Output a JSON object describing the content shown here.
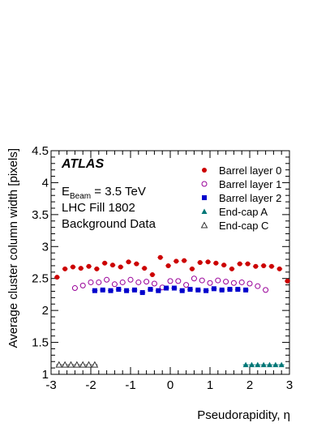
{
  "chart_data": {
    "type": "scatter",
    "xlabel": "Pseudorapidity, η",
    "ylabel": "Average cluster column width [pixels]",
    "xlim": [
      -3,
      3
    ],
    "ylim": [
      1,
      4.5
    ],
    "x_ticks": [
      -3,
      -2,
      -1,
      0,
      1,
      2,
      3
    ],
    "x_tick_labels": [
      "-3",
      "-2",
      "-1",
      "0",
      "1",
      "2",
      "3"
    ],
    "y_ticks": [
      1,
      1.5,
      2,
      2.5,
      3,
      3.5,
      4,
      4.5
    ],
    "y_tick_labels": [
      "1",
      "1.5",
      "2",
      "2.5",
      "3",
      "3.5",
      "4",
      "4.5"
    ],
    "grid": false,
    "legend_position": "top-right",
    "annotations": {
      "experiment": "ATLAS",
      "beam_prefix": "E",
      "beam_sub": "Beam",
      "beam_value": " = 3.5 TeV",
      "fill": "LHC Fill 1802",
      "data_type": "Background Data"
    },
    "series": [
      {
        "name": "Barrel layer 0",
        "marker": "filled-circle",
        "color": "#cc0000",
        "x": [
          -2.85,
          -2.65,
          -2.45,
          -2.25,
          -2.05,
          -1.85,
          -1.65,
          -1.45,
          -1.25,
          -1.05,
          -0.85,
          -0.65,
          -0.45,
          -0.25,
          -0.05,
          0.15,
          0.35,
          0.55,
          0.75,
          0.95,
          1.15,
          1.35,
          1.55,
          1.75,
          1.95,
          2.15,
          2.35,
          2.55,
          2.75,
          2.95
        ],
        "y": [
          2.52,
          2.65,
          2.68,
          2.66,
          2.69,
          2.65,
          2.74,
          2.71,
          2.68,
          2.76,
          2.73,
          2.66,
          2.56,
          2.83,
          2.7,
          2.77,
          2.78,
          2.65,
          2.75,
          2.76,
          2.74,
          2.71,
          2.65,
          2.73,
          2.73,
          2.69,
          2.7,
          2.69,
          2.65,
          2.46
        ]
      },
      {
        "name": "Barrel layer 1",
        "marker": "open-circle",
        "color": "#990099",
        "x": [
          -2.4,
          -2.2,
          -2.0,
          -1.8,
          -1.6,
          -1.4,
          -1.2,
          -1.0,
          -0.8,
          -0.6,
          -0.4,
          -0.2,
          0.0,
          0.2,
          0.4,
          0.6,
          0.8,
          1.0,
          1.2,
          1.4,
          1.6,
          1.8,
          2.0,
          2.2,
          2.4
        ],
        "y": [
          2.35,
          2.39,
          2.44,
          2.44,
          2.48,
          2.41,
          2.44,
          2.48,
          2.44,
          2.45,
          2.42,
          2.36,
          2.46,
          2.46,
          2.4,
          2.5,
          2.47,
          2.43,
          2.47,
          2.45,
          2.43,
          2.44,
          2.42,
          2.38,
          2.32
        ]
      },
      {
        "name": "Barrel layer 2",
        "marker": "filled-square",
        "color": "#0000cc",
        "x": [
          -1.9,
          -1.7,
          -1.5,
          -1.3,
          -1.1,
          -0.9,
          -0.7,
          -0.5,
          -0.3,
          -0.1,
          0.1,
          0.3,
          0.5,
          0.7,
          0.9,
          1.1,
          1.3,
          1.5,
          1.7,
          1.9
        ],
        "y": [
          2.31,
          2.32,
          2.31,
          2.33,
          2.31,
          2.32,
          2.28,
          2.33,
          2.31,
          2.35,
          2.35,
          2.31,
          2.33,
          2.32,
          2.31,
          2.34,
          2.32,
          2.33,
          2.33,
          2.32
        ]
      },
      {
        "name": "End-cap A",
        "marker": "filled-triangle",
        "color": "#007777",
        "x": [
          1.9,
          2.05,
          2.2,
          2.35,
          2.5,
          2.65,
          2.8
        ],
        "y": [
          1.15,
          1.15,
          1.15,
          1.15,
          1.15,
          1.15,
          1.15
        ]
      },
      {
        "name": "End-cap C",
        "marker": "open-triangle",
        "color": "#333333",
        "x": [
          -2.8,
          -2.65,
          -2.5,
          -2.35,
          -2.2,
          -2.05,
          -1.9
        ],
        "y": [
          1.15,
          1.15,
          1.15,
          1.15,
          1.15,
          1.15,
          1.15
        ]
      }
    ]
  }
}
